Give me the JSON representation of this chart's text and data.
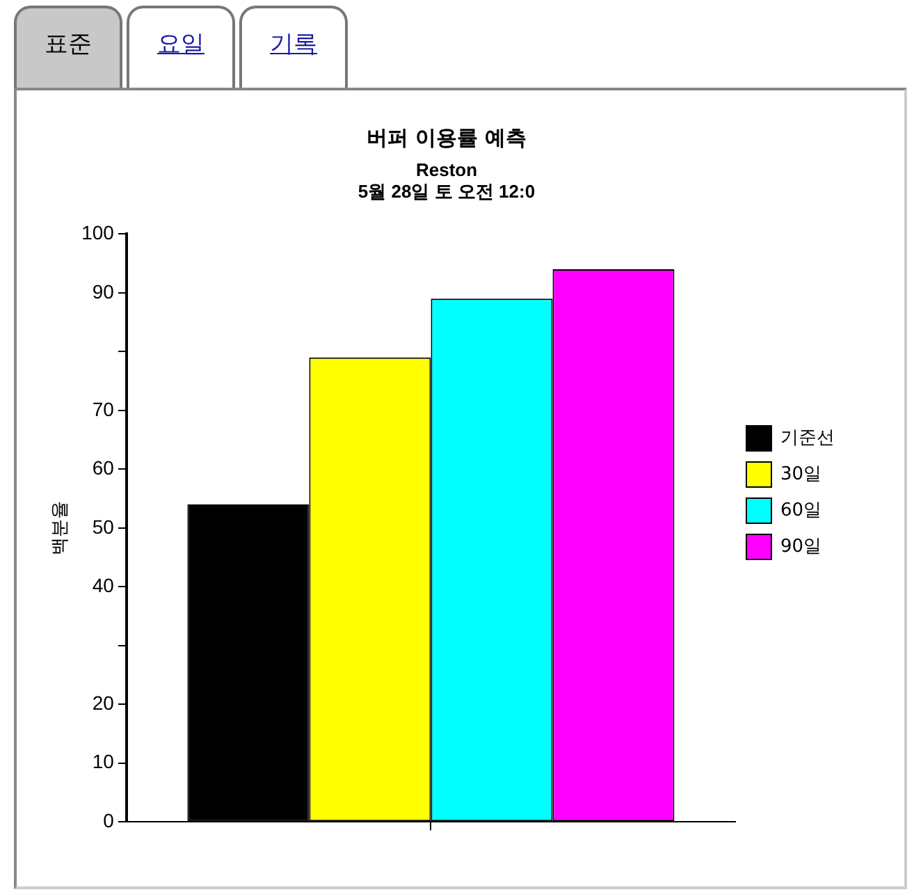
{
  "chart_data": {
    "type": "bar",
    "title": "버퍼 이용률 예측",
    "subtitle": "Reston",
    "ylabel": "백분율",
    "annotations": [
      "5월 28일 토 오전 12:0",
      "표준",
      "요일",
      "기록"
    ],
    "categories": [
      null
    ],
    "series": [
      {
        "name": "기준선",
        "color": "#000000",
        "values": [
          54
        ]
      },
      {
        "name": "30일",
        "color": "#ffff00",
        "values": [
          79
        ]
      },
      {
        "name": "60일",
        "color": "#00ffff",
        "values": [
          89
        ]
      },
      {
        "name": "90일",
        "color": "#ff00ff",
        "values": [
          94
        ]
      }
    ],
    "ylim": [
      0,
      100
    ],
    "yticks": [
      0,
      10,
      20,
      {
        "value": 30,
        "label": null
      },
      40,
      50,
      60,
      70,
      {
        "value": 80,
        "label": null
      },
      90,
      100
    ],
    "grid": false,
    "legend": "right"
  }
}
